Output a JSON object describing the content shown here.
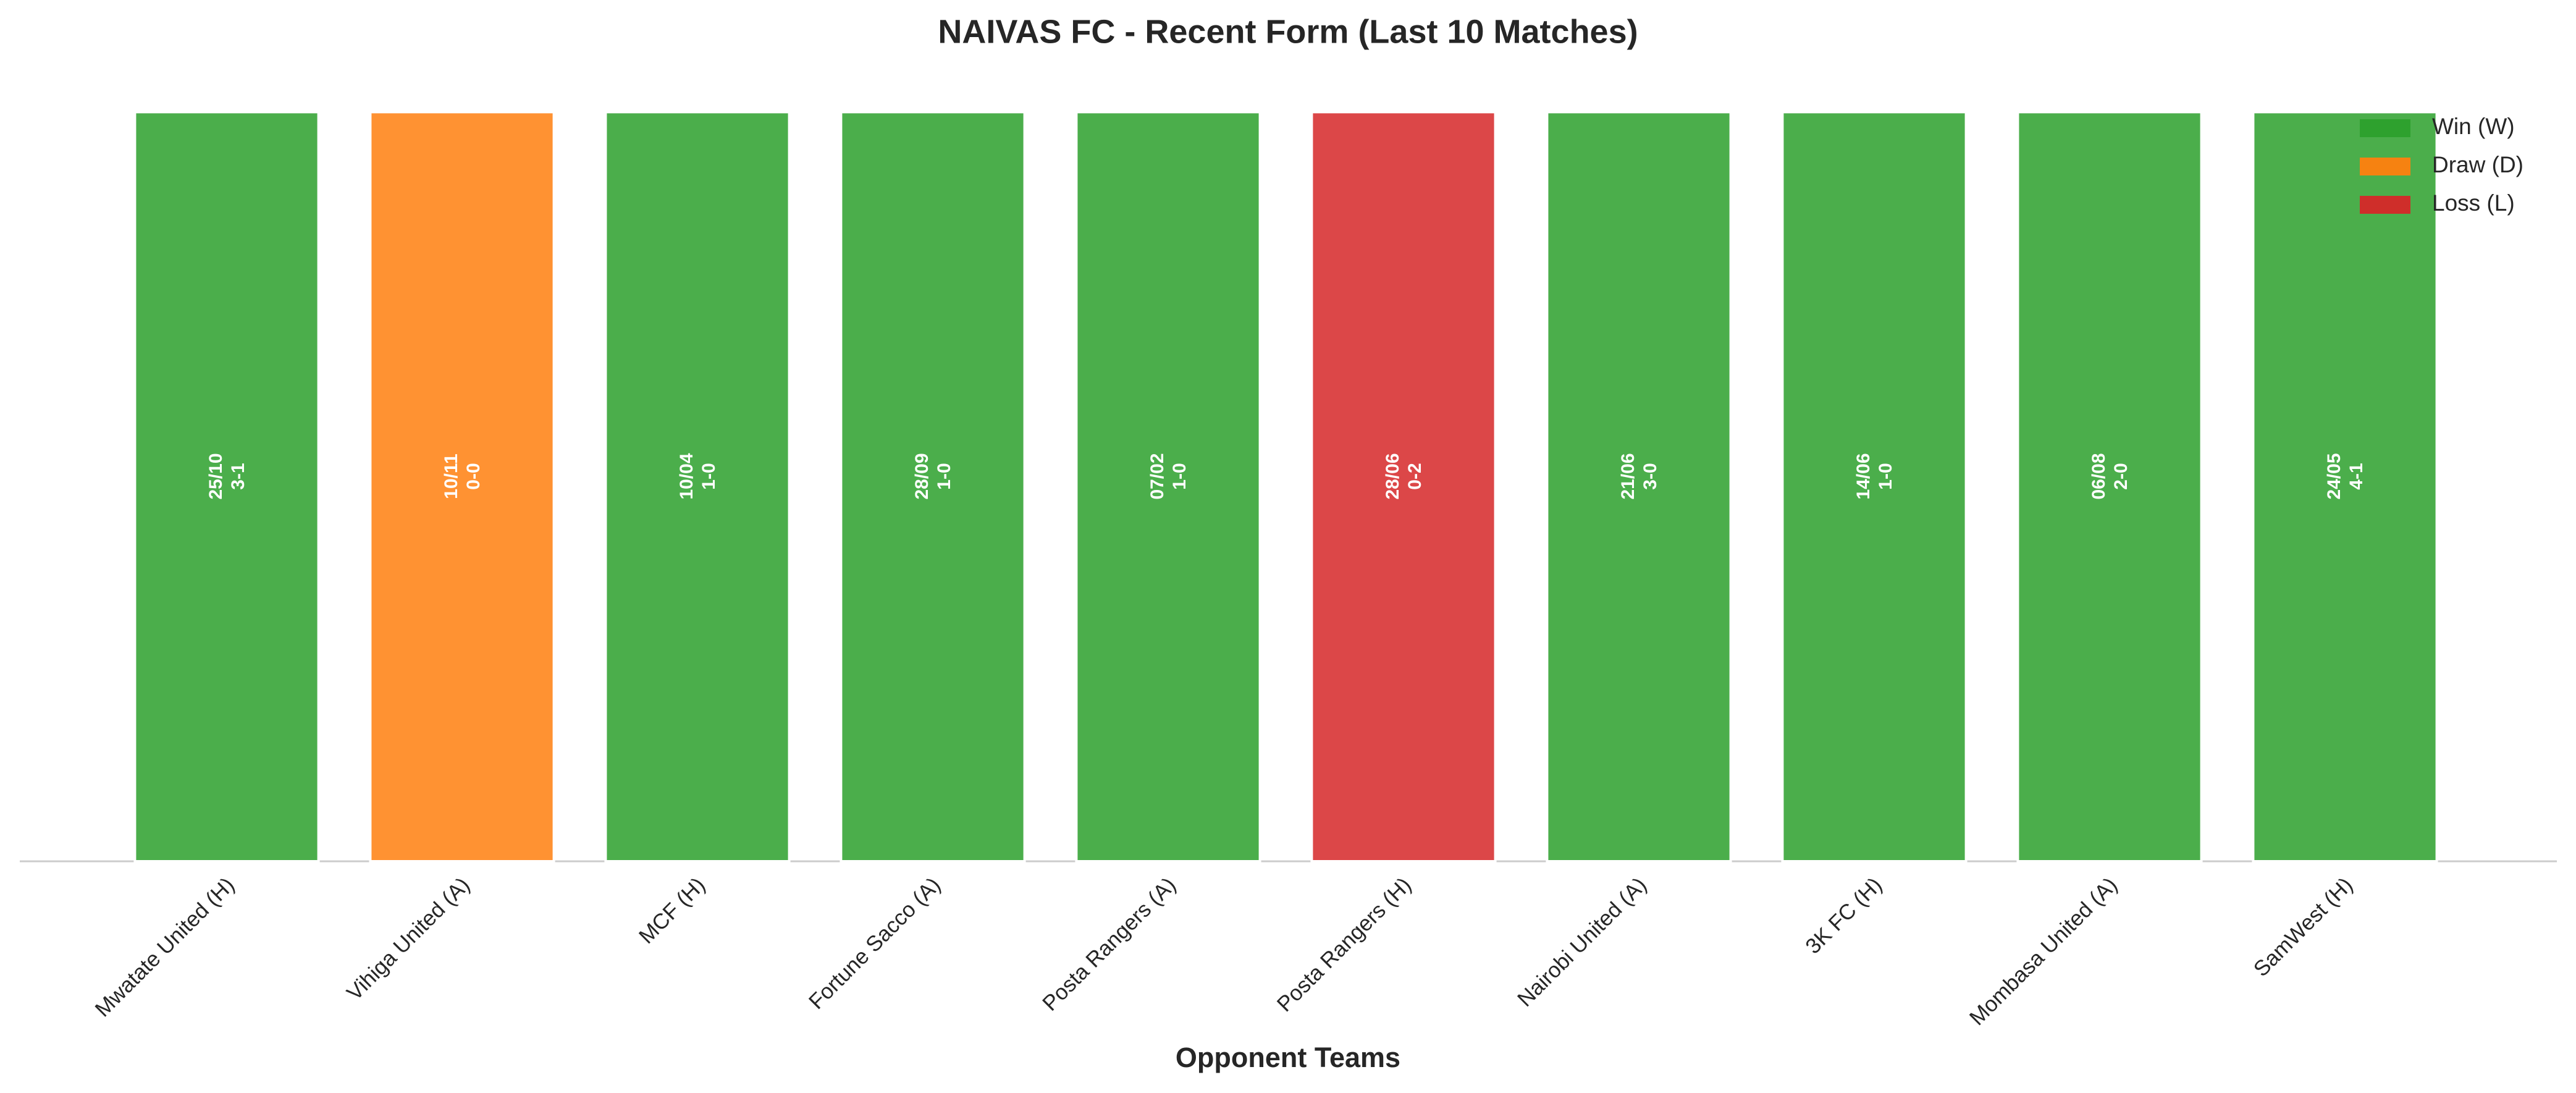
{
  "chart_data": {
    "type": "bar",
    "title": "NAIVAS FC - Recent Form (Last 10 Matches)",
    "xlabel": "Opponent Teams",
    "categories": [
      "Mwatate United (H)",
      "Vihiga United (A)",
      "MCF (H)",
      "Fortune Sacco (A)",
      "Posta Rangers (A)",
      "Posta Rangers (H)",
      "Nairobi United (A)",
      "3K FC (H)",
      "Mombasa United (A)",
      "SamWest (H)"
    ],
    "series": [
      {
        "name": "Win (W)",
        "color": "#2ca02c",
        "values": [
          1,
          null,
          1,
          1,
          1,
          null,
          1,
          1,
          1,
          1
        ]
      },
      {
        "name": "Draw (D)",
        "color": "#ff7f0e",
        "values": [
          null,
          1,
          null,
          null,
          null,
          null,
          null,
          null,
          null,
          null
        ]
      },
      {
        "name": "Loss (L)",
        "color": "#d62728",
        "values": [
          null,
          null,
          null,
          null,
          null,
          1,
          null,
          null,
          null,
          null
        ]
      }
    ],
    "dates": [
      "25/10",
      "10/11",
      "10/04",
      "28/09",
      "07/02",
      "28/06",
      "21/06",
      "14/06",
      "06/08",
      "24/05"
    ],
    "scores": [
      "3-1",
      "0-0",
      "1-0",
      "1-0",
      "1-0",
      "0-2",
      "3-0",
      "1-0",
      "2-0",
      "4-1"
    ],
    "ylim": [
      0,
      1.03
    ],
    "legend": "upper right"
  }
}
